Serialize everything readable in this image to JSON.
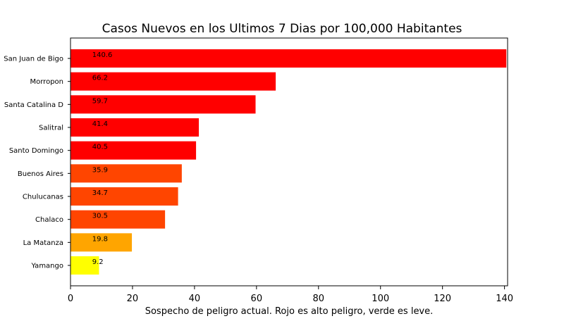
{
  "chart_data": {
    "type": "bar",
    "orientation": "horizontal",
    "title": "Casos Nuevos en los Ultimos 7 Dias por 100,000 Habitantes",
    "xlabel": "Sospecho de peligro actual. Rojo es alto peligro, verde es leve.",
    "ylabel": "",
    "xlim": [
      0,
      141
    ],
    "xticks": [
      0,
      20,
      40,
      60,
      80,
      100,
      120,
      140
    ],
    "grid": false,
    "categories": [
      "San Juan de Bigo",
      "Morropon",
      "Santa Catalina D",
      "Salitral",
      "Santo Domingo",
      "Buenos Aires",
      "Chulucanas",
      "Chalaco",
      "La Matanza",
      "Yamango"
    ],
    "values": [
      140.6,
      66.2,
      59.7,
      41.4,
      40.5,
      35.9,
      34.7,
      30.5,
      19.8,
      9.2
    ],
    "data_labels": [
      "140.6",
      "66.2",
      "59.7",
      "41.4",
      "40.5",
      "35.9",
      "34.7",
      "30.5",
      "19.8",
      "9.2"
    ],
    "colors": [
      "#ff0000",
      "#ff0000",
      "#ff0000",
      "#ff0000",
      "#ff0000",
      "#ff4500",
      "#ff4500",
      "#ff4500",
      "#ffa500",
      "#ffff00"
    ]
  }
}
